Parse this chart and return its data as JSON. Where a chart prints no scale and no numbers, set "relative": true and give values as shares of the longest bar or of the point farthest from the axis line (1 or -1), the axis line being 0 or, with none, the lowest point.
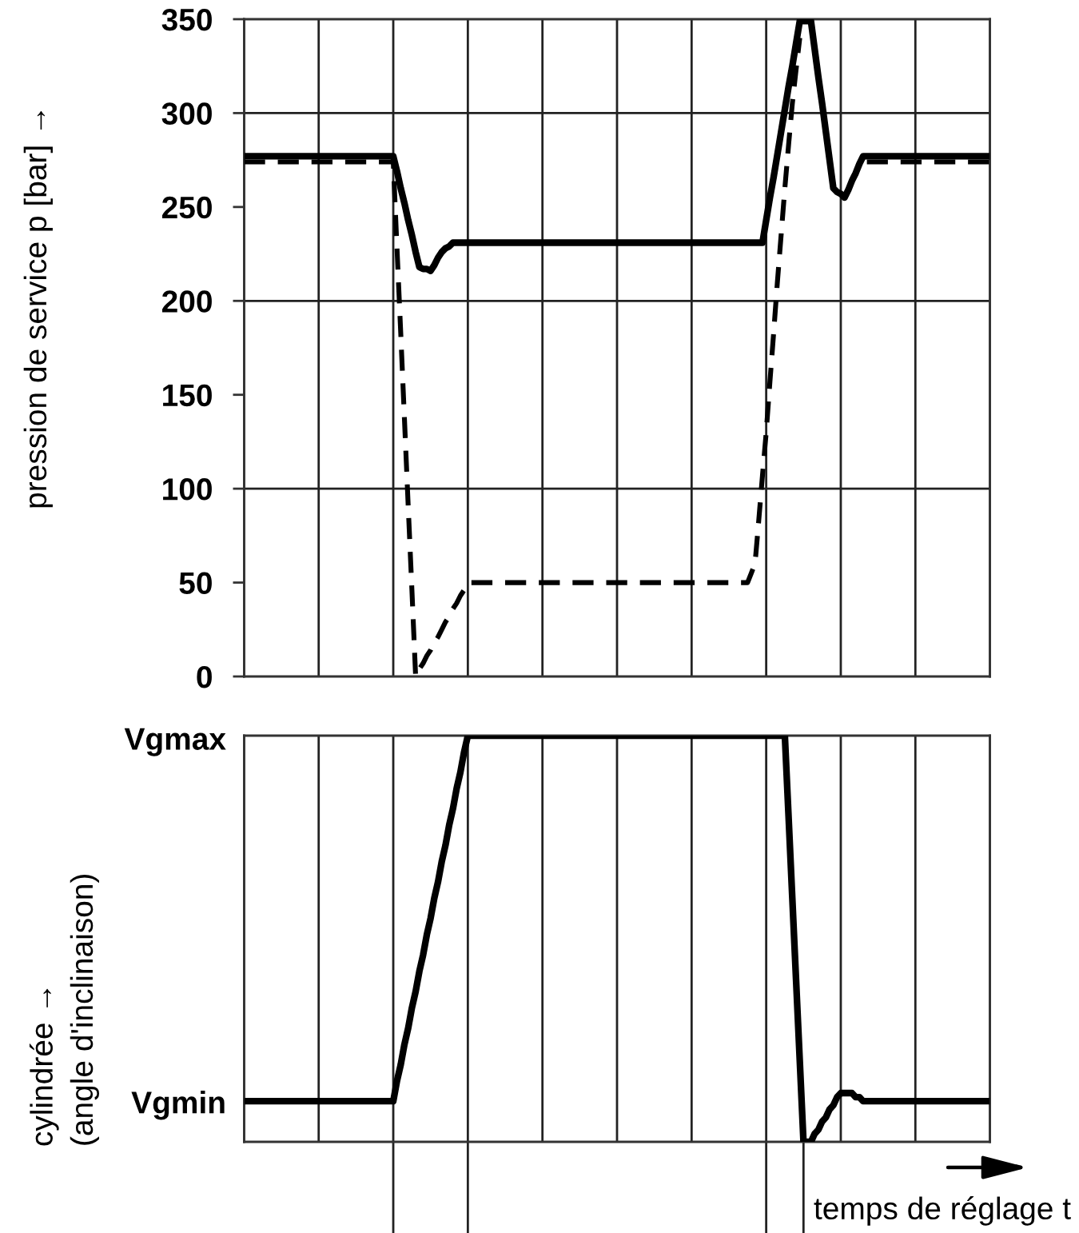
{
  "chart_data": [
    {
      "type": "line",
      "ylabel": "pression de service p [bar] →",
      "ylim": [
        0,
        350
      ],
      "yticks": [
        0,
        50,
        100,
        150,
        200,
        250,
        300,
        350
      ],
      "grid": "x",
      "tick_labels": "y",
      "categories": [
        null,
        null,
        null,
        null,
        null,
        null,
        null,
        null,
        null,
        null,
        null,
        null,
        null,
        null,
        null,
        null,
        null,
        null,
        null,
        null,
        null,
        null,
        null,
        null,
        null,
        null,
        null,
        null,
        null,
        null,
        null,
        null,
        null,
        null,
        null,
        null,
        null,
        null,
        null,
        null,
        null,
        null,
        null,
        null,
        null,
        null,
        null,
        null,
        null,
        null,
        null,
        null,
        null,
        null,
        null,
        null,
        null,
        null,
        null,
        null,
        null,
        null,
        null,
        null,
        null,
        null,
        null,
        null,
        null,
        null,
        null,
        null,
        null,
        null,
        null,
        null,
        null,
        null,
        null,
        null,
        null,
        null,
        null,
        null,
        null,
        null,
        null,
        null,
        null,
        null,
        null,
        null,
        null,
        null,
        null,
        null,
        null,
        null,
        null,
        null,
        null,
        null,
        null,
        null,
        null,
        null,
        null,
        null,
        null,
        null,
        null,
        null,
        null,
        null,
        null,
        null,
        null,
        null,
        null,
        null,
        null,
        null,
        null,
        null,
        null,
        null,
        null,
        null,
        null,
        null,
        null,
        null,
        null,
        null,
        null,
        null,
        null,
        null,
        null,
        null,
        null,
        null,
        null,
        null,
        null,
        null,
        null,
        null,
        null,
        null,
        null,
        null,
        null,
        null,
        null,
        null,
        null,
        null,
        null,
        null,
        null,
        null,
        null,
        null,
        null,
        null,
        null,
        null,
        null,
        null,
        null,
        null,
        null,
        null,
        null,
        null,
        null,
        null,
        null,
        null,
        null,
        null,
        null,
        null,
        null,
        null,
        null,
        null,
        null,
        null,
        null,
        null,
        null,
        null,
        null,
        null,
        null,
        null,
        null,
        null,
        null
      ],
      "ref_lines": [
        {
          "axis": "y",
          "value": 100
        },
        {
          "axis": "y",
          "value": 200
        },
        {
          "axis": "y",
          "value": 300
        }
      ],
      "series": [
        {
          "color": "#000000",
          "line_style": "solid",
          "values": [
            277,
            277,
            277,
            277,
            277,
            277,
            277,
            277,
            277,
            277,
            277,
            277,
            277,
            277,
            277,
            277,
            277,
            277,
            277,
            277,
            277,
            277,
            277,
            277,
            277,
            277,
            277,
            277,
            277,
            277,
            277,
            277,
            277,
            277,
            277,
            277,
            277,
            277,
            277,
            277,
            277,
            269,
            260,
            252,
            243,
            235,
            226,
            218,
            217,
            217,
            216,
            219,
            223,
            226,
            228,
            229,
            231,
            231,
            231,
            231,
            231,
            231,
            231,
            231,
            231,
            231,
            231,
            231,
            231,
            231,
            231,
            231,
            231,
            231,
            231,
            231,
            231,
            231,
            231,
            231,
            231,
            231,
            231,
            231,
            231,
            231,
            231,
            231,
            231,
            231,
            231,
            231,
            231,
            231,
            231,
            231,
            231,
            231,
            231,
            231,
            231,
            231,
            231,
            231,
            231,
            231,
            231,
            231,
            231,
            231,
            231,
            231,
            231,
            231,
            231,
            231,
            231,
            231,
            231,
            231,
            231,
            231,
            231,
            231,
            231,
            231,
            231,
            231,
            231,
            231,
            231,
            231,
            231,
            231,
            231,
            231,
            231,
            231,
            231,
            231,
            243,
            255,
            266,
            278,
            290,
            302,
            314,
            325,
            337,
            349,
            349,
            349,
            349,
            334,
            319,
            305,
            290,
            275,
            260,
            258,
            257,
            255,
            259,
            264,
            268,
            273,
            277,
            277,
            277,
            277,
            277,
            277,
            277,
            277,
            277,
            277,
            277,
            277,
            277,
            277,
            277,
            277,
            277,
            277,
            277,
            277,
            277,
            277,
            277,
            277,
            277,
            277,
            277,
            277,
            277,
            277,
            277,
            277,
            277,
            277,
            277
          ]
        },
        {
          "color": "#000000",
          "line_style": "dashed",
          "values": [
            274,
            274,
            274,
            274,
            274,
            274,
            274,
            274,
            274,
            274,
            274,
            274,
            274,
            274,
            274,
            274,
            274,
            274,
            274,
            274,
            274,
            274,
            274,
            274,
            274,
            274,
            274,
            274,
            274,
            274,
            274,
            274,
            274,
            274,
            274,
            274,
            274,
            274,
            274,
            274,
            274,
            228,
            183,
            137,
            91,
            46,
            0,
            4,
            7,
            11,
            14,
            18,
            21,
            25,
            29,
            32,
            36,
            39,
            43,
            46,
            50,
            50,
            50,
            50,
            50,
            50,
            50,
            50,
            50,
            50,
            50,
            50,
            50,
            50,
            50,
            50,
            50,
            50,
            50,
            50,
            50,
            50,
            50,
            50,
            50,
            50,
            50,
            50,
            50,
            50,
            50,
            50,
            50,
            50,
            50,
            50,
            50,
            50,
            50,
            50,
            50,
            50,
            50,
            50,
            50,
            50,
            50,
            50,
            50,
            50,
            50,
            50,
            50,
            50,
            50,
            50,
            50,
            50,
            50,
            50,
            50,
            50,
            50,
            50,
            50,
            50,
            50,
            50,
            50,
            50,
            50,
            50,
            50,
            50,
            50,
            50,
            55,
            60,
            83,
            107,
            130,
            157,
            183,
            210,
            235,
            260,
            283,
            305,
            323,
            340,
            null,
            null,
            null,
            null,
            null,
            null,
            null,
            null,
            null,
            null,
            null,
            null,
            null,
            null,
            null,
            null,
            null,
            274,
            274,
            274,
            274,
            274,
            274,
            274,
            274,
            274,
            274,
            274,
            274,
            274,
            274,
            274,
            274,
            274,
            274,
            274,
            274,
            274,
            274,
            274,
            274,
            274,
            274,
            274,
            274,
            274,
            274,
            274,
            274,
            274,
            274
          ]
        }
      ]
    },
    {
      "type": "line",
      "relative": true,
      "ylabel": "cylindrée →\n(angle d'inclinaison)",
      "xlabel": "temps de réglage t",
      "grid": "x",
      "tick_labels": "y",
      "annotations": [
        "Vgmax",
        "Vgmin"
      ],
      "categories": [
        null,
        null,
        null,
        null,
        null,
        null,
        null,
        null,
        null,
        null,
        null,
        null,
        null,
        null,
        null,
        null,
        null,
        null,
        null,
        null,
        null,
        null,
        null,
        null,
        null,
        null,
        null,
        null,
        null,
        null,
        null,
        null,
        null,
        null,
        null,
        null,
        null,
        null,
        null,
        null,
        null,
        null,
        null,
        null,
        null,
        null,
        null,
        null,
        null,
        null,
        null,
        null,
        null,
        null,
        null,
        null,
        null,
        null,
        null,
        null,
        null,
        null,
        null,
        null,
        null,
        null,
        null,
        null,
        null,
        null,
        null,
        null,
        null,
        null,
        null,
        null,
        null,
        null,
        null,
        null,
        null,
        null,
        null,
        null,
        null,
        null,
        null,
        null,
        null,
        null,
        null,
        null,
        null,
        null,
        null,
        null,
        null,
        null,
        null,
        null,
        null,
        null,
        null,
        null,
        null,
        null,
        null,
        null,
        null,
        null,
        null,
        null,
        null,
        null,
        null,
        null,
        null,
        null,
        null,
        null,
        null,
        null,
        null,
        null,
        null,
        null,
        null,
        null,
        null,
        null,
        null,
        null,
        null,
        null,
        null,
        null,
        null,
        null,
        null,
        null,
        null,
        null,
        null,
        null,
        null,
        null,
        null,
        null,
        null,
        null,
        null,
        null,
        null,
        null,
        null,
        null,
        null,
        null,
        null,
        null,
        null,
        null,
        null,
        null,
        null,
        null,
        null,
        null,
        null,
        null,
        null,
        null,
        null,
        null,
        null,
        null,
        null,
        null,
        null,
        null,
        null,
        null,
        null,
        null,
        null,
        null,
        null,
        null,
        null,
        null,
        null,
        null,
        null,
        null,
        null,
        null,
        null,
        null,
        null,
        null,
        null
      ],
      "series": [
        {
          "color": "#000000",
          "line_style": "solid",
          "values": [
            0.1,
            0.1,
            0.1,
            0.1,
            0.1,
            0.1,
            0.1,
            0.1,
            0.1,
            0.1,
            0.1,
            0.1,
            0.1,
            0.1,
            0.1,
            0.1,
            0.1,
            0.1,
            0.1,
            0.1,
            0.1,
            0.1,
            0.1,
            0.1,
            0.1,
            0.1,
            0.1,
            0.1,
            0.1,
            0.1,
            0.1,
            0.1,
            0.1,
            0.1,
            0.1,
            0.1,
            0.1,
            0.1,
            0.1,
            0.1,
            0.1,
            0.15,
            0.19,
            0.24,
            0.28,
            0.33,
            0.37,
            0.42,
            0.46,
            0.51,
            0.55,
            0.6,
            0.64,
            0.69,
            0.73,
            0.78,
            0.82,
            0.87,
            0.91,
            0.96,
            1,
            1,
            1,
            1,
            1,
            1,
            1,
            1,
            1,
            1,
            1,
            1,
            1,
            1,
            1,
            1,
            1,
            1,
            1,
            1,
            1,
            1,
            1,
            1,
            1,
            1,
            1,
            1,
            1,
            1,
            1,
            1,
            1,
            1,
            1,
            1,
            1,
            1,
            1,
            1,
            1,
            1,
            1,
            1,
            1,
            1,
            1,
            1,
            1,
            1,
            1,
            1,
            1,
            1,
            1,
            1,
            1,
            1,
            1,
            1,
            1,
            1,
            1,
            1,
            1,
            1,
            1,
            1,
            1,
            1,
            1,
            1,
            1,
            1,
            1,
            1,
            1,
            1,
            1,
            1,
            1,
            1,
            1,
            1,
            1,
            1,
            0.8,
            0.6,
            0.4,
            0.2,
            0,
            0,
            0,
            0.02,
            0.03,
            0.05,
            0.06,
            0.08,
            0.09,
            0.11,
            0.12,
            0.12,
            0.12,
            0.12,
            0.11,
            0.11,
            0.1,
            0.1,
            0.1,
            0.1,
            0.1,
            0.1,
            0.1,
            0.1,
            0.1,
            0.1,
            0.1,
            0.1,
            0.1,
            0.1,
            0.1,
            0.1,
            0.1,
            0.1,
            0.1,
            0.1,
            0.1,
            0.1,
            0.1,
            0.1,
            0.1,
            0.1,
            0.1,
            0.1,
            0.1,
            0.1,
            0.1,
            0.1,
            0.1,
            0.1,
            0.1
          ]
        }
      ]
    }
  ]
}
